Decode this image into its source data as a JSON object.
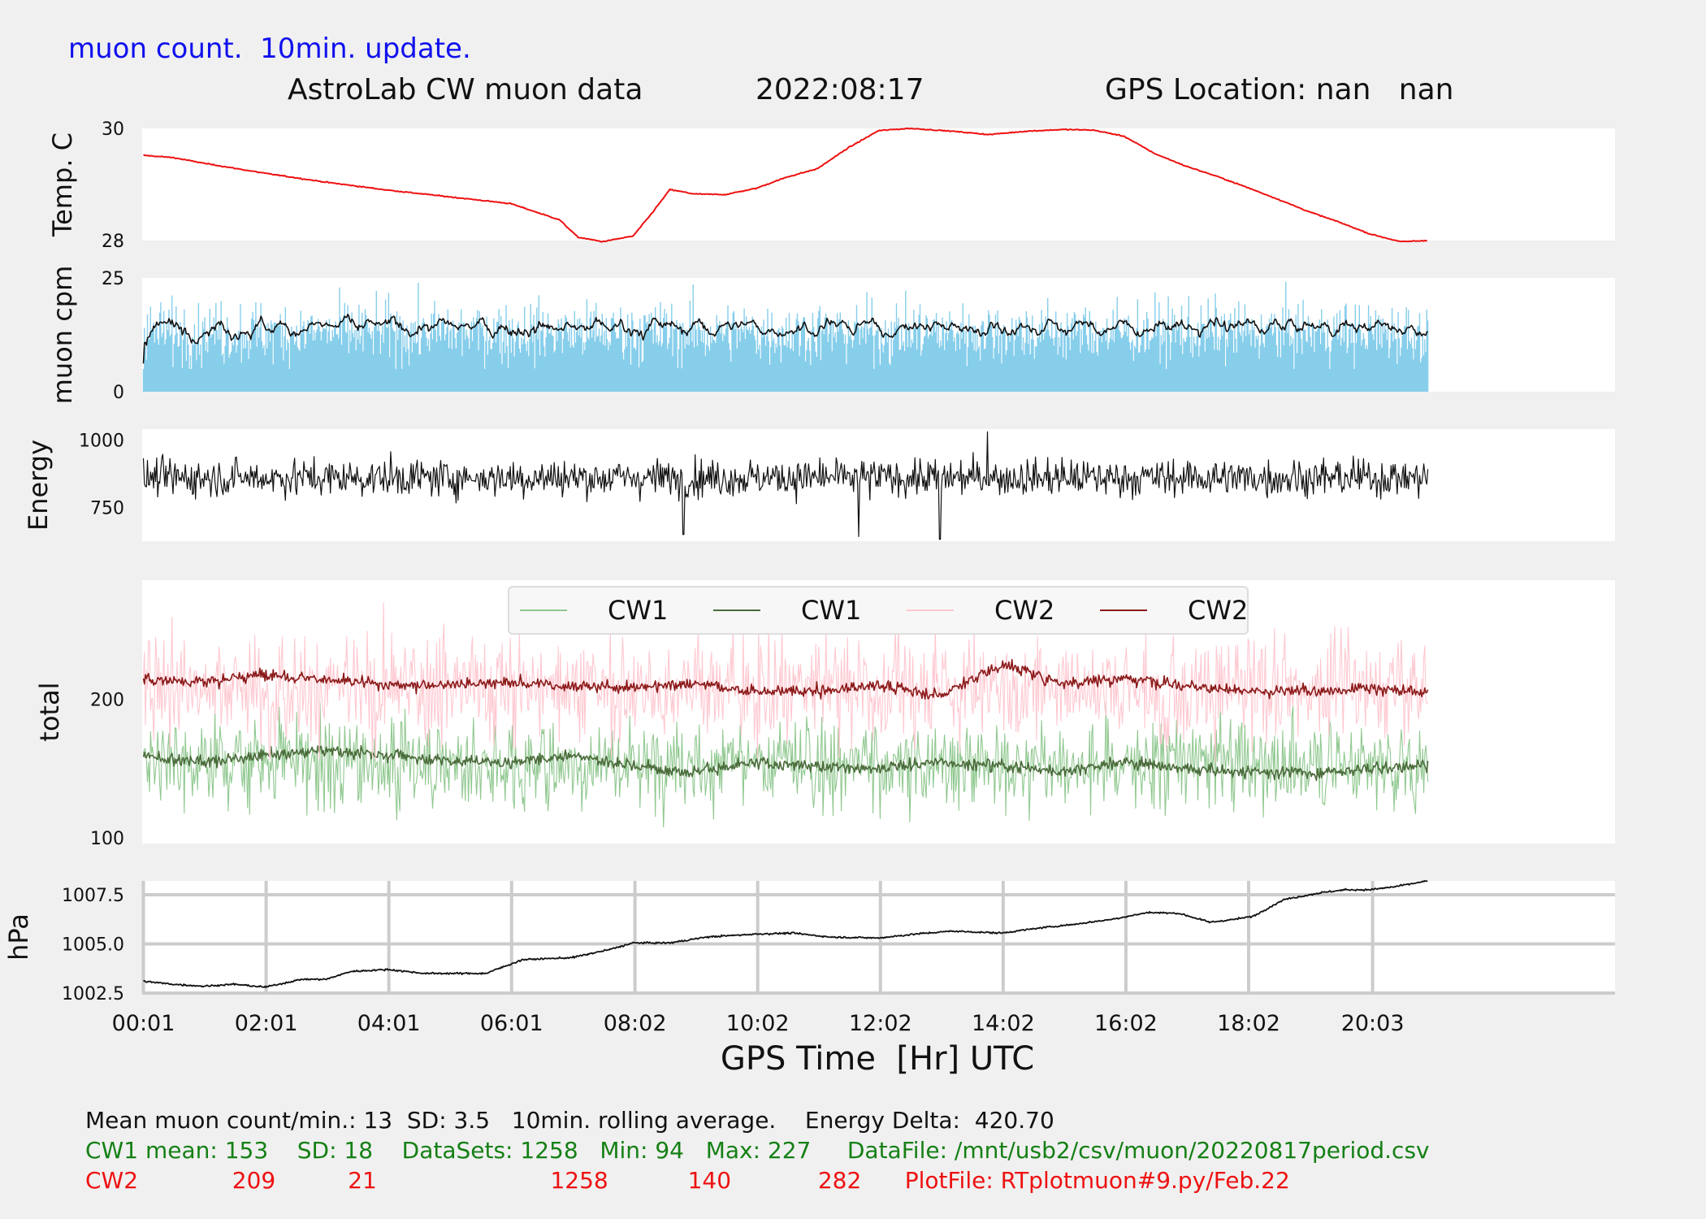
{
  "header": {
    "update_note": "muon count.  10min. update.",
    "title": "AstroLab CW muon data",
    "date": "2022:08:17",
    "gps_location": "GPS Location: nan   nan"
  },
  "colors": {
    "note_blue": "#1010ee",
    "temp_red": "#ee1111",
    "muon_bar": "#87ceeb",
    "cw1_raw": "#90c890",
    "cw1_avg": "#4a6b3a",
    "cw2_raw": "#ffc8d0",
    "cw2_avg": "#8b1a1a",
    "green_text": "#158015",
    "red_text": "#ee1111"
  },
  "chart_data": [
    {
      "type": "line",
      "name": "temperature",
      "ylabel": "Temp. C",
      "ylim": [
        28,
        30
      ],
      "yticks": [
        "30",
        "28"
      ],
      "series": [
        {
          "name": "",
          "x": [
            0.02,
            0.5,
            1,
            2,
            3,
            4,
            5,
            6,
            6.8,
            7.1,
            7.5,
            8.0,
            8.3,
            8.6,
            9.0,
            9.5,
            10.0,
            10.5,
            11.0,
            11.5,
            12.0,
            12.5,
            12.8,
            13.2,
            13.8,
            14.4,
            15.0,
            15.5,
            16.0,
            16.5,
            17.0,
            17.5,
            18.0,
            18.5,
            19.0,
            19.5,
            20.0,
            20.5,
            20.95
          ],
          "y": [
            29.52,
            29.48,
            29.38,
            29.2,
            29.04,
            28.9,
            28.78,
            28.66,
            28.37,
            28.06,
            27.98,
            28.08,
            28.48,
            28.91,
            28.83,
            28.82,
            28.93,
            29.13,
            29.28,
            29.65,
            29.96,
            30.0,
            29.98,
            29.95,
            29.89,
            29.95,
            29.98,
            29.97,
            29.86,
            29.55,
            29.33,
            29.15,
            28.95,
            28.74,
            28.52,
            28.33,
            28.12,
            27.98,
            28.0
          ]
        }
      ]
    },
    {
      "type": "bar",
      "name": "muon cpm",
      "ylabel": "muon cpm",
      "ylim": [
        0,
        25
      ],
      "yticks": [
        "25",
        "0"
      ],
      "x_range": [
        0.02,
        20.95
      ],
      "mean": 13,
      "sd": 3.5,
      "series": [
        {
          "name": "",
          "mean": 13,
          "sd": 3.5
        }
      ]
    },
    {
      "type": "line",
      "name": "energy",
      "ylabel": "Energy",
      "ylim": [
        625,
        1040
      ],
      "yticks": [
        "1000",
        "750"
      ],
      "x_range": [
        0.02,
        20.95
      ],
      "mean": 860,
      "spikes": [
        {
          "x": 13.78,
          "y": 1030
        },
        {
          "x": 11.68,
          "y": 642
        },
        {
          "x": 13.0,
          "y": 632
        },
        {
          "x": 8.82,
          "y": 650
        }
      ]
    },
    {
      "type": "line",
      "name": "total",
      "ylabel": "total",
      "ylim": [
        96,
        286
      ],
      "yticks": [
        "200",
        "100"
      ],
      "legend": [
        "CW1",
        "CW1",
        "CW2",
        "CW2"
      ],
      "legend_position": "top-center",
      "x_range": [
        0.02,
        20.95
      ],
      "series": [
        {
          "name": "CW1",
          "mean": 153,
          "sd": 18,
          "min": 94,
          "max": 227,
          "avg_x": [
            0,
            1,
            2,
            3,
            4,
            5,
            6,
            7,
            8,
            9,
            10,
            11,
            12,
            13,
            14,
            15,
            16,
            17,
            18,
            19,
            20,
            20.95
          ],
          "avg_y": [
            160,
            155,
            160,
            163,
            160,
            156,
            154,
            160,
            152,
            148,
            154,
            152,
            150,
            155,
            152,
            148,
            155,
            150,
            148,
            147,
            150,
            152
          ]
        },
        {
          "name": "CW2",
          "mean": 209,
          "sd": 21,
          "min": 140,
          "max": 282,
          "avg_x": [
            0,
            1,
            2,
            3,
            4,
            5,
            6,
            7,
            8,
            9,
            10,
            11,
            12,
            13,
            14,
            15,
            16,
            17,
            18,
            19,
            20,
            20.95
          ],
          "avg_y": [
            215,
            213,
            218,
            214,
            210,
            211,
            212,
            210,
            208,
            212,
            205,
            206,
            210,
            203,
            225,
            212,
            215,
            210,
            205,
            206,
            208,
            205
          ]
        }
      ]
    },
    {
      "type": "line",
      "name": "pressure",
      "ylabel": "hPa",
      "ylim": [
        1002.5,
        1008.2
      ],
      "yticks": [
        "1007.5",
        "1005.0",
        "1002.5"
      ],
      "grid": true,
      "series": [
        {
          "name": "",
          "x": [
            0.02,
            0.5,
            1.0,
            1.5,
            2.0,
            2.6,
            3.0,
            3.4,
            4.0,
            4.6,
            5.0,
            5.6,
            6.2,
            7.0,
            7.6,
            8.0,
            8.6,
            9.2,
            10.0,
            10.6,
            11.2,
            12.0,
            12.6,
            13.2,
            14.0,
            14.6,
            15.2,
            15.8,
            16.4,
            16.9,
            17.4,
            17.8,
            18.1,
            18.6,
            19.2,
            19.6,
            20.0,
            20.4,
            20.95
          ],
          "y": [
            1003.1,
            1002.95,
            1002.85,
            1002.95,
            1002.8,
            1003.2,
            1003.2,
            1003.6,
            1003.7,
            1003.5,
            1003.5,
            1003.5,
            1004.2,
            1004.3,
            1004.7,
            1005.05,
            1005.05,
            1005.35,
            1005.5,
            1005.55,
            1005.35,
            1005.3,
            1005.5,
            1005.65,
            1005.55,
            1005.8,
            1006.0,
            1006.25,
            1006.6,
            1006.55,
            1006.1,
            1006.25,
            1006.4,
            1007.25,
            1007.6,
            1007.75,
            1007.75,
            1007.9,
            1008.2
          ]
        }
      ]
    }
  ],
  "x_axis": {
    "label": "GPS Time  [Hr] UTC",
    "range": [
      0,
      24
    ],
    "ticks": [
      {
        "label": "00:01",
        "x": 0.02
      },
      {
        "label": "02:01",
        "x": 2.02
      },
      {
        "label": "04:01",
        "x": 4.02
      },
      {
        "label": "06:01",
        "x": 6.02
      },
      {
        "label": "08:02",
        "x": 8.03
      },
      {
        "label": "10:02",
        "x": 10.03
      },
      {
        "label": "12:02",
        "x": 12.03
      },
      {
        "label": "14:02",
        "x": 14.03
      },
      {
        "label": "16:02",
        "x": 16.03
      },
      {
        "label": "18:02",
        "x": 18.03
      },
      {
        "label": "20:03",
        "x": 20.05
      }
    ]
  },
  "footer": {
    "line1": "Mean muon count/min.: 13  SD: 3.5   10min. rolling average.    Energy Delta:  420.70",
    "line2": "CW1 mean: 153    SD: 18    DataSets: 1258   Min: 94   Max: 227     DataFile: /mnt/usb2/csv/muon/20220817period.csv",
    "line3": "CW2             209          21                        1258           140            282      PlotFile: RTplotmuon#9.py/Feb.22"
  }
}
